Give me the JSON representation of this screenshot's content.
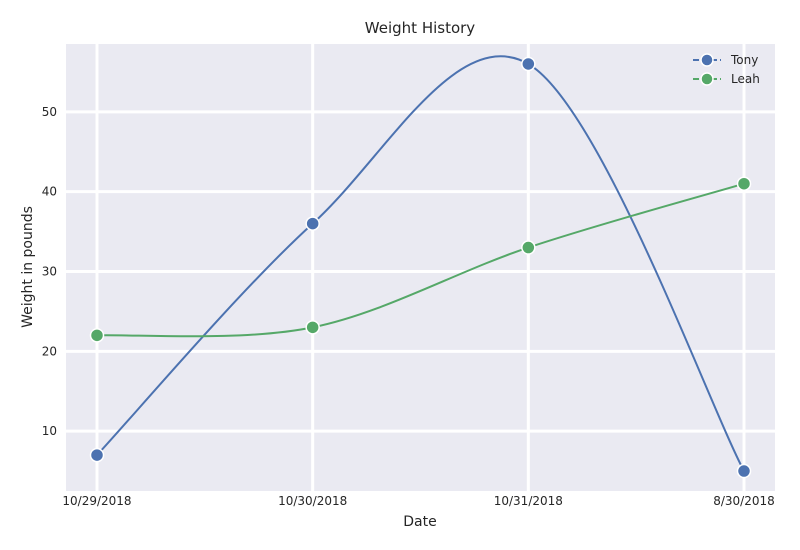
{
  "chart_data": {
    "type": "line",
    "title": "Weight History",
    "xlabel": "Date",
    "ylabel": "Weight in pounds",
    "categories": [
      "10/29/2018",
      "10/30/2018",
      "10/31/2018",
      "8/30/2018"
    ],
    "yticks": [
      10,
      20,
      30,
      40,
      50
    ],
    "ylim": [
      2.5,
      58.5
    ],
    "grid": true,
    "legend_position": "top-right",
    "series": [
      {
        "name": "Tony",
        "color": "#4c72b0",
        "values": [
          7,
          36,
          56,
          5
        ]
      },
      {
        "name": "Leah",
        "color": "#55a868",
        "values": [
          22,
          23,
          33,
          41
        ]
      }
    ]
  }
}
